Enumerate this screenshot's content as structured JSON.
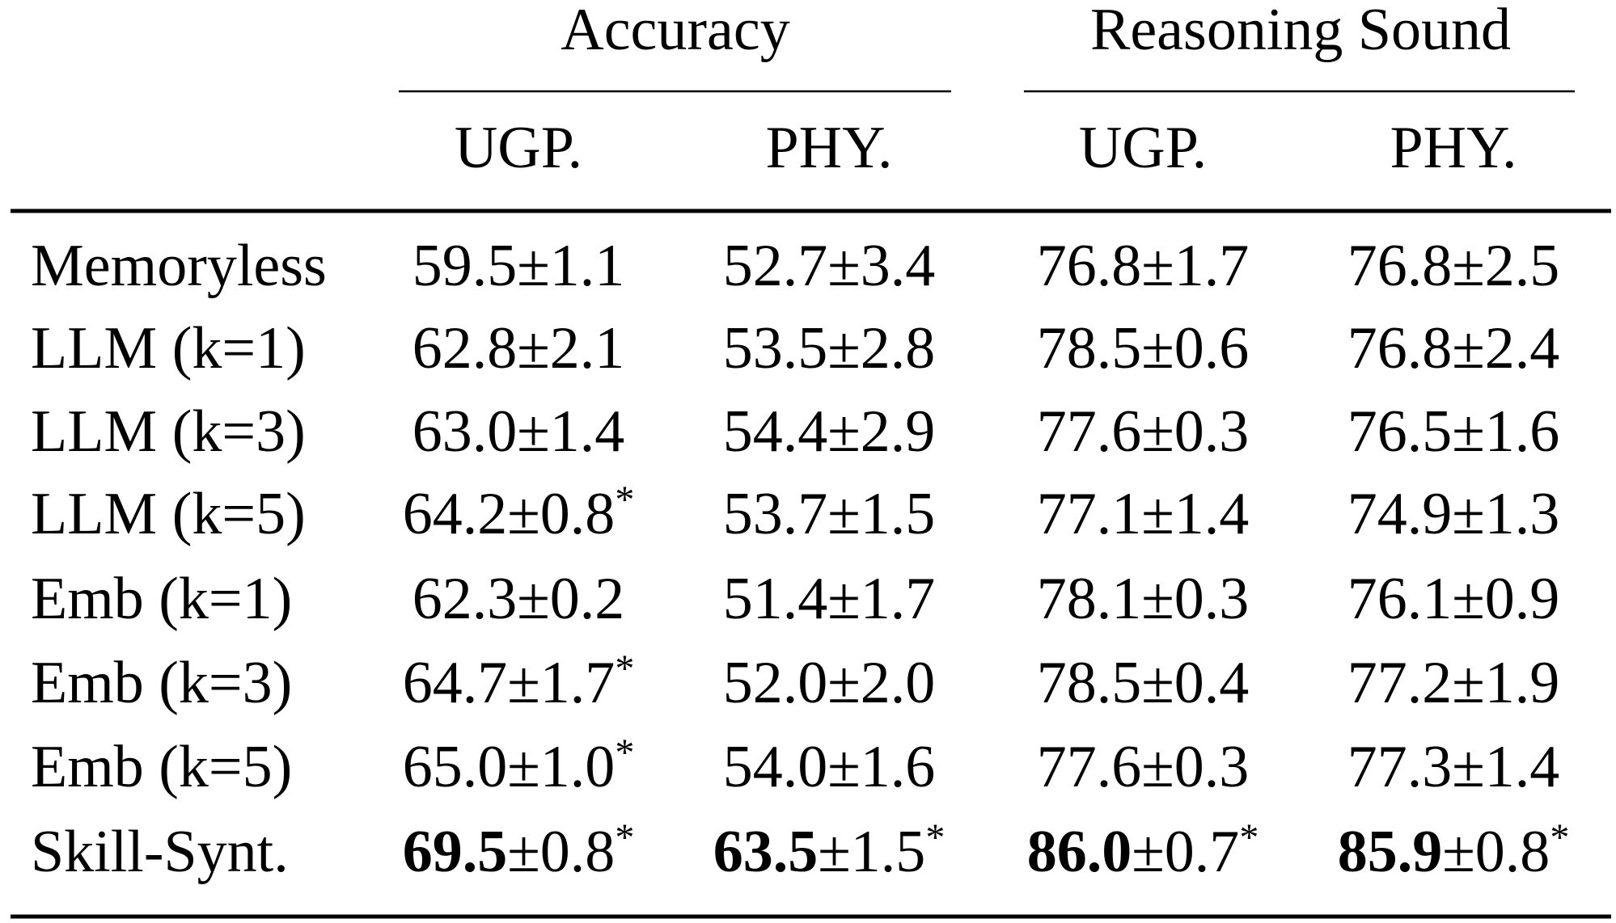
{
  "table": {
    "groups": [
      "Accuracy",
      "Reasoning Sound"
    ],
    "columns": [
      "UGP.",
      "PHY.",
      "UGP.",
      "PHY."
    ],
    "rows": [
      {
        "label": "Memoryless",
        "cells": [
          {
            "mean": "59.5",
            "std": "±1.1"
          },
          {
            "mean": "52.7",
            "std": "±3.4"
          },
          {
            "mean": "76.8",
            "std": "±1.7"
          },
          {
            "mean": "76.8",
            "std": "±2.5"
          }
        ]
      },
      {
        "label": "LLM (k=1)",
        "cells": [
          {
            "mean": "62.8",
            "std": "±2.1"
          },
          {
            "mean": "53.5",
            "std": "±2.8"
          },
          {
            "mean": "78.5",
            "std": "±0.6"
          },
          {
            "mean": "76.8",
            "std": "±2.4"
          }
        ]
      },
      {
        "label": "LLM (k=3)",
        "cells": [
          {
            "mean": "63.0",
            "std": "±1.4"
          },
          {
            "mean": "54.4",
            "std": "±2.9"
          },
          {
            "mean": "77.6",
            "std": "±0.3"
          },
          {
            "mean": "76.5",
            "std": "±1.6"
          }
        ]
      },
      {
        "label": "LLM (k=5)",
        "cells": [
          {
            "mean": "64.2",
            "std": "±0.8",
            "sup": "*"
          },
          {
            "mean": "53.7",
            "std": "±1.5"
          },
          {
            "mean": "77.1",
            "std": "±1.4"
          },
          {
            "mean": "74.9",
            "std": "±1.3"
          }
        ]
      },
      {
        "label": "Emb (k=1)",
        "cells": [
          {
            "mean": "62.3",
            "std": "±0.2"
          },
          {
            "mean": "51.4",
            "std": "±1.7"
          },
          {
            "mean": "78.1",
            "std": "±0.3"
          },
          {
            "mean": "76.1",
            "std": "±0.9"
          }
        ]
      },
      {
        "label": "Emb (k=3)",
        "cells": [
          {
            "mean": "64.7",
            "std": "±1.7",
            "sup": "*"
          },
          {
            "mean": "52.0",
            "std": "±2.0"
          },
          {
            "mean": "78.5",
            "std": "±0.4"
          },
          {
            "mean": "77.2",
            "std": "±1.9"
          }
        ]
      },
      {
        "label": "Emb (k=5)",
        "cells": [
          {
            "mean": "65.0",
            "std": "±1.0",
            "sup": "*"
          },
          {
            "mean": "54.0",
            "std": "±1.6"
          },
          {
            "mean": "77.6",
            "std": "±0.3"
          },
          {
            "mean": "77.3",
            "std": "±1.4"
          }
        ]
      },
      {
        "label": "Skill-Synt.",
        "best": true,
        "cells": [
          {
            "mean": "69.5",
            "std": "±0.8",
            "sup": "*"
          },
          {
            "mean": "63.5",
            "std": "±1.5",
            "sup": "*"
          },
          {
            "mean": "86.0",
            "std": "±0.7",
            "sup": "*"
          },
          {
            "mean": "85.9",
            "std": "±0.8",
            "sup": "*"
          }
        ]
      }
    ]
  }
}
